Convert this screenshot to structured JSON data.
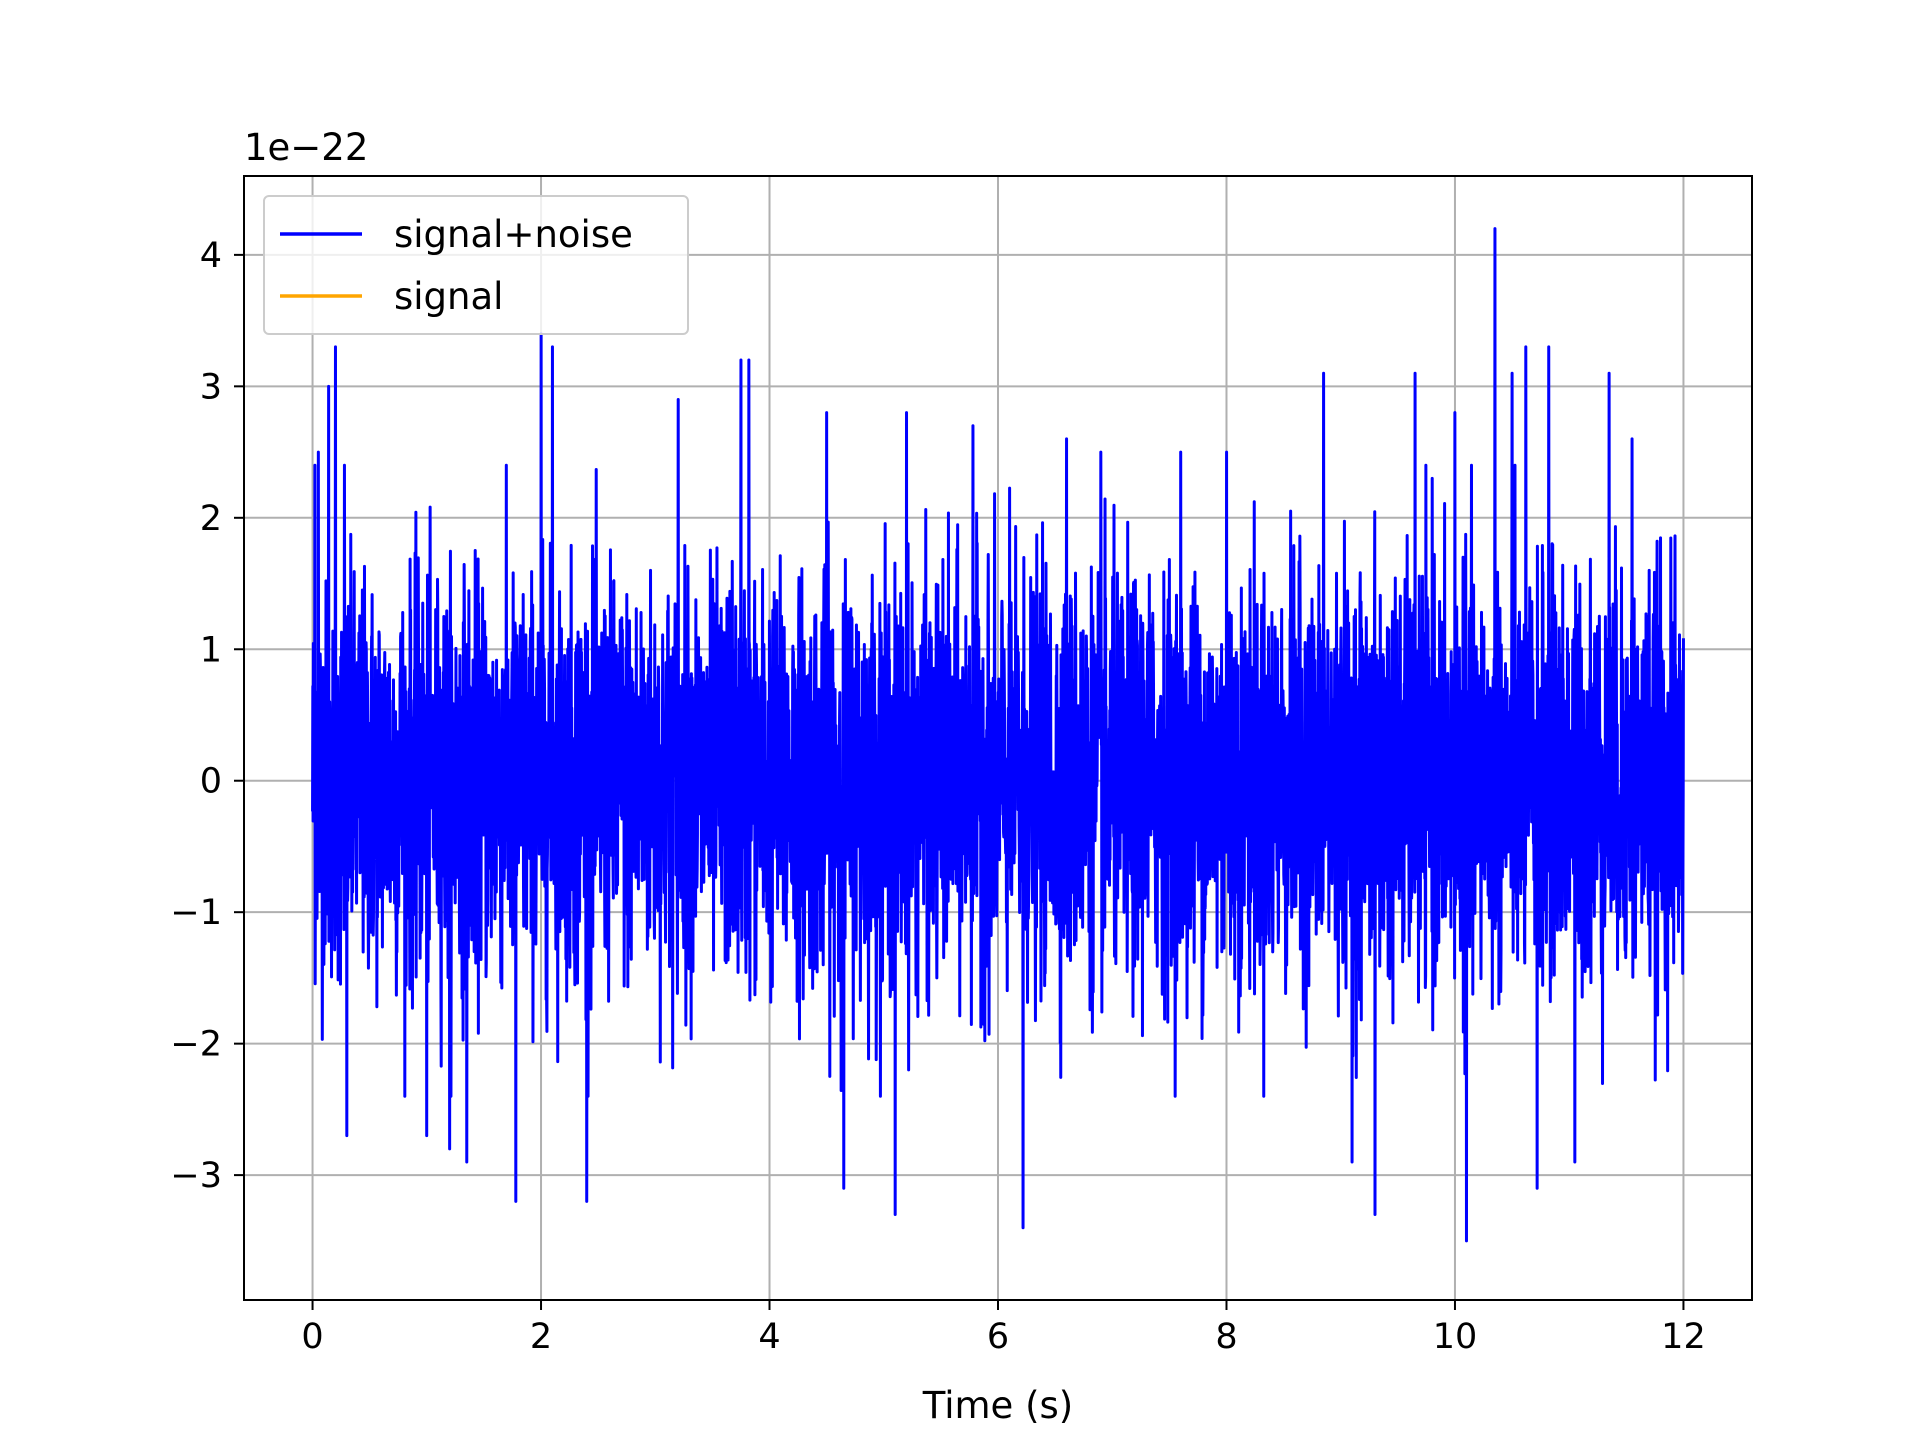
{
  "chart_data": {
    "type": "line",
    "title": "",
    "xlabel": "Time (s)",
    "ylabel": "",
    "y_offset_label": "1e−22",
    "x_range": [
      0,
      12
    ],
    "xlim": [
      -0.6,
      12.6
    ],
    "ylim": [
      -3.95,
      4.6
    ],
    "x_ticks": [
      0,
      2,
      4,
      6,
      8,
      10,
      12
    ],
    "x_tick_labels": [
      "0",
      "2",
      "4",
      "6",
      "8",
      "10",
      "12"
    ],
    "y_ticks": [
      -3,
      -2,
      -1,
      0,
      1,
      2,
      3,
      4
    ],
    "y_tick_labels": [
      "−3",
      "−2",
      "−1",
      "0",
      "1",
      "2",
      "3",
      "4"
    ],
    "grid": true,
    "legend_position": "top-left",
    "series": [
      {
        "name": "signal+noise",
        "color": "#0000ff",
        "description_values": "dense noise, typical amplitude about 1.5, occasional spikes",
        "spikes": [
          [
            0.02,
            2.4
          ],
          [
            0.05,
            2.5
          ],
          [
            0.14,
            3.0
          ],
          [
            0.2,
            3.3
          ],
          [
            0.28,
            2.4
          ],
          [
            0.3,
            -2.7
          ],
          [
            1.0,
            -2.7
          ],
          [
            1.2,
            -2.8
          ],
          [
            1.35,
            -2.9
          ],
          [
            1.78,
            -3.2
          ],
          [
            2.0,
            3.4
          ],
          [
            2.1,
            3.3
          ],
          [
            2.4,
            -3.2
          ],
          [
            3.2,
            2.9
          ],
          [
            3.75,
            3.2
          ],
          [
            3.82,
            3.2
          ],
          [
            4.5,
            2.8
          ],
          [
            4.65,
            -3.1
          ],
          [
            5.1,
            -3.3
          ],
          [
            5.2,
            2.8
          ],
          [
            5.78,
            2.7
          ],
          [
            6.22,
            -3.4
          ],
          [
            6.6,
            2.6
          ],
          [
            6.9,
            2.5
          ],
          [
            7.6,
            2.5
          ],
          [
            8.0,
            2.5
          ],
          [
            8.85,
            3.1
          ],
          [
            9.1,
            -2.9
          ],
          [
            9.3,
            -3.3
          ],
          [
            9.65,
            3.1
          ],
          [
            9.8,
            2.3
          ],
          [
            10.0,
            2.8
          ],
          [
            10.1,
            -3.5
          ],
          [
            10.35,
            4.2
          ],
          [
            10.5,
            3.1
          ],
          [
            10.62,
            3.3
          ],
          [
            10.72,
            -3.1
          ],
          [
            10.82,
            3.3
          ],
          [
            11.05,
            -2.9
          ],
          [
            11.35,
            3.1
          ],
          [
            11.55,
            2.6
          ]
        ]
      },
      {
        "name": "signal",
        "color": "#ffa500",
        "values": []
      }
    ]
  }
}
